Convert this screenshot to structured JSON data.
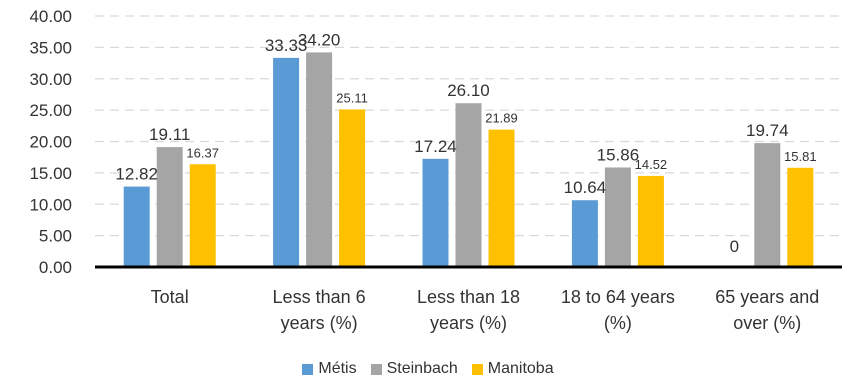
{
  "chart_data": {
    "type": "bar",
    "categories": [
      [
        "Total"
      ],
      [
        "Less than 6",
        "years (%)"
      ],
      [
        "Less than 18",
        "years (%)"
      ],
      [
        "18 to 64 years",
        "(%)"
      ],
      [
        "65 years and",
        "over (%)"
      ]
    ],
    "series": [
      {
        "name": "Métis",
        "color": "#5b9bd5",
        "values": [
          12.82,
          33.33,
          17.24,
          10.64,
          0
        ],
        "labels": [
          "12.82",
          "33.33",
          "17.24",
          "10.64",
          "0"
        ]
      },
      {
        "name": "Steinbach",
        "color": "#a5a5a5",
        "values": [
          19.11,
          34.2,
          26.1,
          15.86,
          19.74
        ],
        "labels": [
          "19.11",
          "34.20",
          "26.10",
          "15.86",
          "19.74"
        ]
      },
      {
        "name": "Manitoba",
        "color": "#ffc000",
        "values": [
          16.37,
          25.11,
          21.89,
          14.52,
          15.81
        ],
        "labels": [
          "16.37",
          "25.11",
          "21.89",
          "14.52",
          "15.81"
        ]
      }
    ],
    "ylim": [
      0,
      40
    ],
    "yticks": [
      "0.00",
      "5.00",
      "10.00",
      "15.00",
      "20.00",
      "25.00",
      "30.00",
      "35.00",
      "40.00"
    ],
    "grid": true,
    "legend_position": "bottom"
  }
}
